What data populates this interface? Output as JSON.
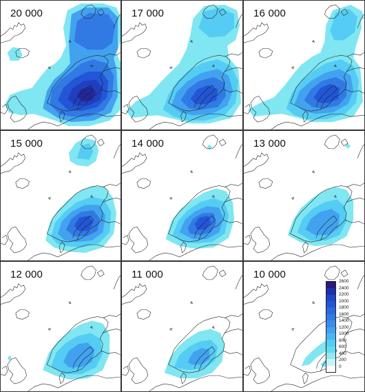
{
  "panels": [
    {
      "label": "20 000",
      "stage": "lgm"
    },
    {
      "label": "17 000",
      "stage": "s17"
    },
    {
      "label": "16 000",
      "stage": "s16"
    },
    {
      "label": "15 000",
      "stage": "s15"
    },
    {
      "label": "14 000",
      "stage": "s14"
    },
    {
      "label": "13 000",
      "stage": "s13"
    },
    {
      "label": "12 000",
      "stage": "s12"
    },
    {
      "label": "11 000",
      "stage": "s11"
    },
    {
      "label": "10 000",
      "stage": "s10"
    }
  ],
  "legend": {
    "labels": [
      "2600",
      "2400",
      "2200",
      "2000",
      "1800",
      "1600",
      "1400",
      "1200",
      "1000",
      "800",
      "600",
      "400",
      "200",
      "0"
    ],
    "colors": [
      "#2b1a7a",
      "#1f2fa8",
      "#1f45c8",
      "#2256d6",
      "#2a68de",
      "#317ae4",
      "#398dea",
      "#42a2ef",
      "#4bb7f2",
      "#55ccf3",
      "#62dcf2",
      "#8fe8f4",
      "#c6f3f8",
      "#ffffff"
    ]
  }
}
